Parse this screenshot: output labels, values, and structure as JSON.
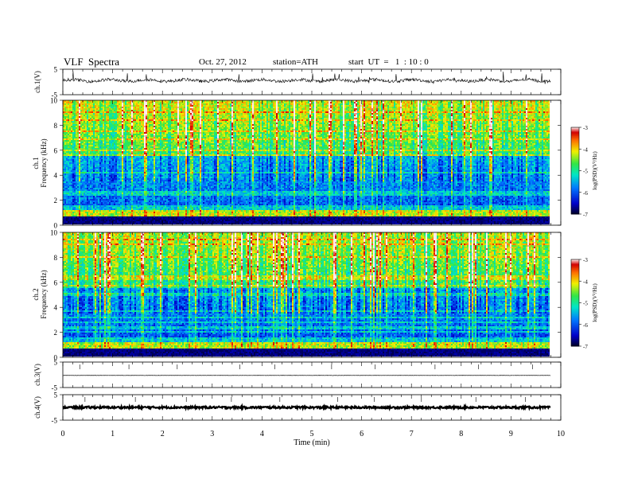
{
  "header": {
    "title": "VLF  Spectra",
    "date": "Oct. 27, 2012",
    "station": "station=ATH",
    "start": "start  UT  =   1  : 10 : 0"
  },
  "chart_data": [
    {
      "type": "line",
      "name": "ch1-waveform",
      "ylabel": "ch.1(V)",
      "ylim": [
        -5,
        5
      ],
      "yticks": [
        "5",
        "-5"
      ],
      "xlim": [
        0,
        10
      ]
    },
    {
      "type": "heatmap",
      "name": "ch1-spectrogram",
      "ylabel": [
        "ch.1",
        "Frequency  (kHz)"
      ],
      "ylim": [
        0,
        10
      ],
      "yticks": [
        "0",
        "2",
        "4",
        "6",
        "8",
        "10"
      ],
      "xlim": [
        0,
        10
      ],
      "colorbar": {
        "label": "log(PSD)(V²/Hz)",
        "range": [
          -7,
          -3
        ],
        "ticks": [
          "-3",
          "-4",
          "-5",
          "-6",
          "-7"
        ]
      }
    },
    {
      "type": "heatmap",
      "name": "ch2-spectrogram",
      "ylabel": [
        "ch.2",
        "Frequency  (kHz)"
      ],
      "ylim": [
        0,
        10
      ],
      "yticks": [
        "0",
        "2",
        "4",
        "6",
        "8",
        "10"
      ],
      "xlim": [
        0,
        10
      ],
      "colorbar": {
        "label": "log(PSD)(V²/Hz)",
        "range": [
          -7,
          -3
        ],
        "ticks": [
          "-3",
          "-4",
          "-5",
          "-6",
          "-7"
        ]
      }
    },
    {
      "type": "line",
      "name": "ch3-waveform",
      "ylabel": "ch.3(V)",
      "ylim": [
        -5,
        5
      ],
      "yticks": [
        "5",
        "-5"
      ],
      "xlim": [
        0,
        10
      ]
    },
    {
      "type": "line",
      "name": "ch4-waveform",
      "ylabel": "ch.4(V)",
      "ylim": [
        -5,
        5
      ],
      "yticks": [
        "5",
        "-5"
      ],
      "xlim": [
        0,
        10
      ],
      "xlabel": "Time  (min)",
      "xticks": [
        "0",
        "1",
        "2",
        "3",
        "4",
        "5",
        "6",
        "7",
        "8",
        "9",
        "10"
      ]
    }
  ]
}
